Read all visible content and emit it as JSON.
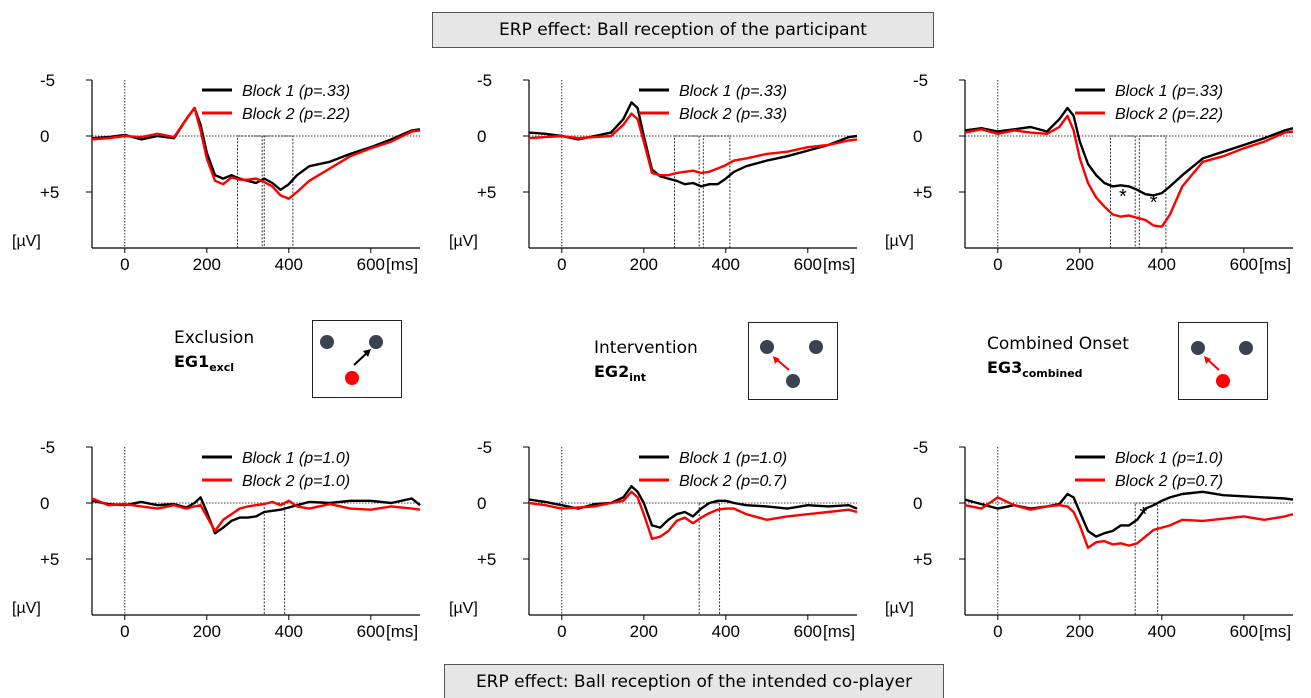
{
  "header": {
    "top_title": "ERP effect: Ball reception of the participant",
    "bottom_title": "ERP effect: Ball reception of the intended co-player"
  },
  "colors": {
    "block1": "#000000",
    "block2": "#ff0000",
    "player": "#3a4350"
  },
  "groups": [
    {
      "name": "Exclusion",
      "code_main": "EG1",
      "code_sub": "excl"
    },
    {
      "name": "Intervention",
      "code_main": "EG2",
      "code_sub": "int"
    },
    {
      "name": "Combined Onset",
      "code_main": "EG3",
      "code_sub": "combined"
    }
  ],
  "axis": {
    "ytick_labels": [
      "-5",
      "0",
      "+5"
    ],
    "yunit": "[µV]",
    "xtick_labels": [
      "0",
      "200",
      "400",
      "600"
    ],
    "xunit": "[ms]"
  },
  "chart_data": [
    {
      "type": "line",
      "xlim": [
        -80,
        720
      ],
      "ylim": [
        -5,
        10
      ],
      "y_inverted": true,
      "series": [
        {
          "name": "Block 1 (p=.33)",
          "x": [
            -80,
            -40,
            0,
            40,
            80,
            120,
            150,
            170,
            185,
            200,
            220,
            240,
            260,
            280,
            300,
            320,
            340,
            360,
            380,
            400,
            420,
            450,
            500,
            550,
            600,
            650,
            700,
            720
          ],
          "values": [
            0.2,
            0.1,
            -0.1,
            0.3,
            0,
            0.2,
            -1.5,
            -2.5,
            -1,
            1.5,
            3.5,
            3.8,
            3.5,
            3.8,
            4,
            4.2,
            3.8,
            4.2,
            4.8,
            4.3,
            3.5,
            2.7,
            2.3,
            1.6,
            1,
            0.3,
            -0.5,
            -0.6
          ]
        },
        {
          "name": "Block 2 (p=.22)",
          "x": [
            -80,
            -40,
            0,
            40,
            80,
            120,
            150,
            170,
            185,
            200,
            220,
            240,
            260,
            280,
            300,
            320,
            340,
            360,
            380,
            400,
            420,
            450,
            500,
            550,
            600,
            650,
            700,
            720
          ],
          "values": [
            0.3,
            0.2,
            0,
            0.1,
            -0.2,
            0.1,
            -1.5,
            -2.5,
            -0.5,
            2,
            4,
            4.3,
            3.7,
            3.9,
            3.9,
            3.8,
            4.1,
            4.5,
            5.3,
            5.6,
            5,
            4,
            2.9,
            1.8,
            1.1,
            0.5,
            -0.4,
            -0.5
          ]
        }
      ],
      "significance_windows": [
        [
          275,
          335
        ],
        [
          340,
          410
        ]
      ],
      "annotations": []
    },
    {
      "type": "line",
      "xlim": [
        -80,
        720
      ],
      "ylim": [
        -5,
        10
      ],
      "y_inverted": true,
      "series": [
        {
          "name": "Block 1 (p=.33)",
          "x": [
            -80,
            -40,
            0,
            40,
            80,
            120,
            150,
            170,
            185,
            200,
            220,
            240,
            260,
            280,
            300,
            320,
            340,
            360,
            380,
            400,
            420,
            450,
            500,
            550,
            600,
            650,
            700,
            720
          ],
          "values": [
            -0.3,
            -0.2,
            0,
            0.3,
            0,
            -0.3,
            -1.5,
            -3,
            -2.5,
            0,
            3,
            3.6,
            3.8,
            4,
            4.3,
            4.2,
            4.5,
            4.3,
            4.3,
            3.8,
            3.2,
            2.7,
            2.2,
            1.8,
            1.3,
            0.8,
            0.1,
            0
          ]
        },
        {
          "name": "Block 2 (p=.33)",
          "x": [
            -80,
            -40,
            0,
            40,
            80,
            120,
            150,
            170,
            185,
            200,
            220,
            240,
            260,
            280,
            300,
            320,
            340,
            360,
            380,
            400,
            420,
            450,
            500,
            550,
            600,
            650,
            700,
            720
          ],
          "values": [
            0.2,
            0.1,
            0,
            0.2,
            0.1,
            0,
            -1,
            -2,
            -1.5,
            0.5,
            3.3,
            3.5,
            3.5,
            3.3,
            3.2,
            3.1,
            3.3,
            3.2,
            2.9,
            2.6,
            2.2,
            2,
            1.6,
            1.4,
            1,
            0.8,
            0.4,
            0.3
          ]
        }
      ],
      "significance_windows": [
        [
          275,
          335
        ],
        [
          345,
          410
        ]
      ],
      "annotations": []
    },
    {
      "type": "line",
      "xlim": [
        -80,
        720
      ],
      "ylim": [
        -5,
        10
      ],
      "y_inverted": true,
      "series": [
        {
          "name": "Block 1 (p=.33)",
          "x": [
            -80,
            -40,
            0,
            40,
            80,
            120,
            150,
            170,
            185,
            200,
            220,
            240,
            260,
            280,
            300,
            320,
            340,
            360,
            380,
            400,
            420,
            450,
            500,
            550,
            600,
            650,
            700,
            720
          ],
          "values": [
            -0.5,
            -0.7,
            -0.4,
            -0.6,
            -0.8,
            -0.4,
            -1.5,
            -2.5,
            -1.8,
            0.5,
            2.5,
            3.5,
            4.2,
            4.5,
            4.4,
            4.5,
            4.8,
            5.2,
            5.3,
            5.1,
            4.5,
            3.5,
            2,
            1.4,
            0.8,
            0.2,
            -0.5,
            -0.7
          ]
        },
        {
          "name": "Block 2 (p=.22)",
          "x": [
            -80,
            -40,
            0,
            40,
            80,
            120,
            150,
            170,
            185,
            200,
            220,
            240,
            260,
            280,
            300,
            320,
            340,
            360,
            380,
            400,
            420,
            450,
            500,
            550,
            600,
            650,
            700,
            720
          ],
          "values": [
            -0.3,
            -0.6,
            -0.2,
            -0.5,
            -0.3,
            -0.2,
            -0.8,
            -1.8,
            -0.5,
            2,
            4.2,
            5.5,
            6.3,
            7,
            7.2,
            7.1,
            7.3,
            7.5,
            8,
            8.1,
            7,
            4.5,
            2.3,
            1.8,
            1.1,
            0.5,
            -0.3,
            -0.4
          ]
        }
      ],
      "significance_windows": [
        [
          275,
          335
        ],
        [
          345,
          410
        ]
      ],
      "annotations": [
        {
          "text": "*",
          "x": 305,
          "y": 6
        },
        {
          "text": "*",
          "x": 380,
          "y": 6.5
        }
      ]
    },
    {
      "type": "line",
      "xlim": [
        -80,
        720
      ],
      "ylim": [
        -5,
        10
      ],
      "y_inverted": true,
      "series": [
        {
          "name": "Block 1 (p=1.0)",
          "x": [
            -80,
            -40,
            0,
            40,
            80,
            120,
            150,
            170,
            185,
            200,
            220,
            240,
            260,
            280,
            300,
            320,
            340,
            360,
            380,
            400,
            420,
            450,
            500,
            550,
            600,
            650,
            700,
            720
          ],
          "values": [
            -0.2,
            0.1,
            0.2,
            -0.1,
            0.2,
            0.1,
            0.4,
            0,
            -0.5,
            0.8,
            2.7,
            2.2,
            1.6,
            1.3,
            1.3,
            1.2,
            0.8,
            0.7,
            0.6,
            0.4,
            0.2,
            -0.1,
            0,
            -0.2,
            -0.2,
            0,
            -0.4,
            0.2
          ]
        },
        {
          "name": "Block 2 (p=1.0)",
          "x": [
            -80,
            -40,
            0,
            40,
            80,
            120,
            150,
            170,
            185,
            200,
            220,
            240,
            260,
            280,
            300,
            320,
            340,
            360,
            380,
            400,
            420,
            450,
            500,
            550,
            600,
            650,
            700,
            720
          ],
          "values": [
            -0.4,
            0.2,
            0.1,
            0.3,
            0.5,
            0.2,
            0.5,
            0.3,
            0.2,
            1.2,
            2.5,
            1.5,
            1,
            0.5,
            0.3,
            0.2,
            0.1,
            -0.1,
            0.2,
            -0.2,
            0.3,
            0.5,
            0.1,
            0.5,
            0.6,
            0.3,
            0.5,
            0.6
          ]
        }
      ],
      "significance_windows": [
        [
          340,
          390
        ]
      ],
      "annotations": []
    },
    {
      "type": "line",
      "xlim": [
        -80,
        720
      ],
      "ylim": [
        -5,
        10
      ],
      "y_inverted": true,
      "series": [
        {
          "name": "Block 1 (p=1.0)",
          "x": [
            -80,
            -40,
            0,
            40,
            80,
            120,
            150,
            170,
            185,
            200,
            220,
            240,
            260,
            280,
            300,
            320,
            340,
            360,
            380,
            400,
            420,
            450,
            500,
            550,
            600,
            650,
            700,
            720
          ],
          "values": [
            -0.3,
            -0.1,
            0.2,
            0.5,
            0.1,
            0,
            -0.5,
            -1.5,
            -1,
            0,
            2,
            2.2,
            1.5,
            1,
            0.8,
            1.2,
            0.5,
            0,
            -0.2,
            -0.2,
            0,
            0.2,
            0.3,
            0.5,
            0.2,
            0.3,
            0.2,
            0.5
          ]
        },
        {
          "name": "Block 2 (p=0.7)",
          "x": [
            -80,
            -40,
            0,
            40,
            80,
            120,
            150,
            170,
            185,
            200,
            220,
            240,
            260,
            280,
            300,
            320,
            340,
            360,
            380,
            400,
            420,
            450,
            500,
            550,
            600,
            650,
            700,
            720
          ],
          "values": [
            0,
            0.2,
            0.5,
            0.4,
            0.3,
            0,
            -0.2,
            -1,
            -0.5,
            1,
            3.2,
            3,
            2.5,
            1.6,
            1.3,
            1.8,
            1.3,
            0.9,
            0.6,
            0.5,
            0.5,
            1,
            1.5,
            1.2,
            1,
            0.8,
            0.6,
            0.8
          ]
        }
      ],
      "significance_windows": [
        [
          335,
          385
        ]
      ],
      "annotations": []
    },
    {
      "type": "line",
      "xlim": [
        -80,
        720
      ],
      "ylim": [
        -5,
        10
      ],
      "y_inverted": true,
      "series": [
        {
          "name": "Block 1 (p=1.0)",
          "x": [
            -80,
            -40,
            0,
            40,
            80,
            120,
            150,
            170,
            185,
            200,
            220,
            240,
            260,
            280,
            300,
            320,
            340,
            360,
            380,
            400,
            420,
            450,
            500,
            550,
            600,
            650,
            700,
            720
          ],
          "values": [
            -0.3,
            0.1,
            0.5,
            0.2,
            0.5,
            0.3,
            0.1,
            -0.8,
            -0.5,
            0.8,
            2.5,
            3,
            2.7,
            2.5,
            2,
            2,
            1.5,
            0.5,
            0.2,
            -0.2,
            -0.5,
            -0.8,
            -1,
            -0.7,
            -0.6,
            -0.5,
            -0.4,
            -0.3
          ]
        },
        {
          "name": "Block 2 (p=0.7)",
          "x": [
            -80,
            -40,
            0,
            40,
            80,
            120,
            150,
            170,
            185,
            200,
            220,
            240,
            260,
            280,
            300,
            320,
            340,
            360,
            380,
            400,
            420,
            450,
            500,
            550,
            600,
            650,
            700,
            720
          ],
          "values": [
            0.2,
            0.5,
            -0.5,
            0.2,
            0.6,
            0.3,
            0.2,
            0.3,
            0.8,
            2,
            4,
            3.5,
            3.4,
            3.7,
            3.6,
            3.8,
            3.6,
            3,
            2.4,
            2.2,
            2,
            1.5,
            1.6,
            1.4,
            1.2,
            1.5,
            1.2,
            1
          ]
        }
      ],
      "significance_windows": [
        [
          335,
          390
        ]
      ],
      "annotations": [
        {
          "text": "*",
          "x": 355,
          "y": 1.6
        }
      ]
    }
  ]
}
